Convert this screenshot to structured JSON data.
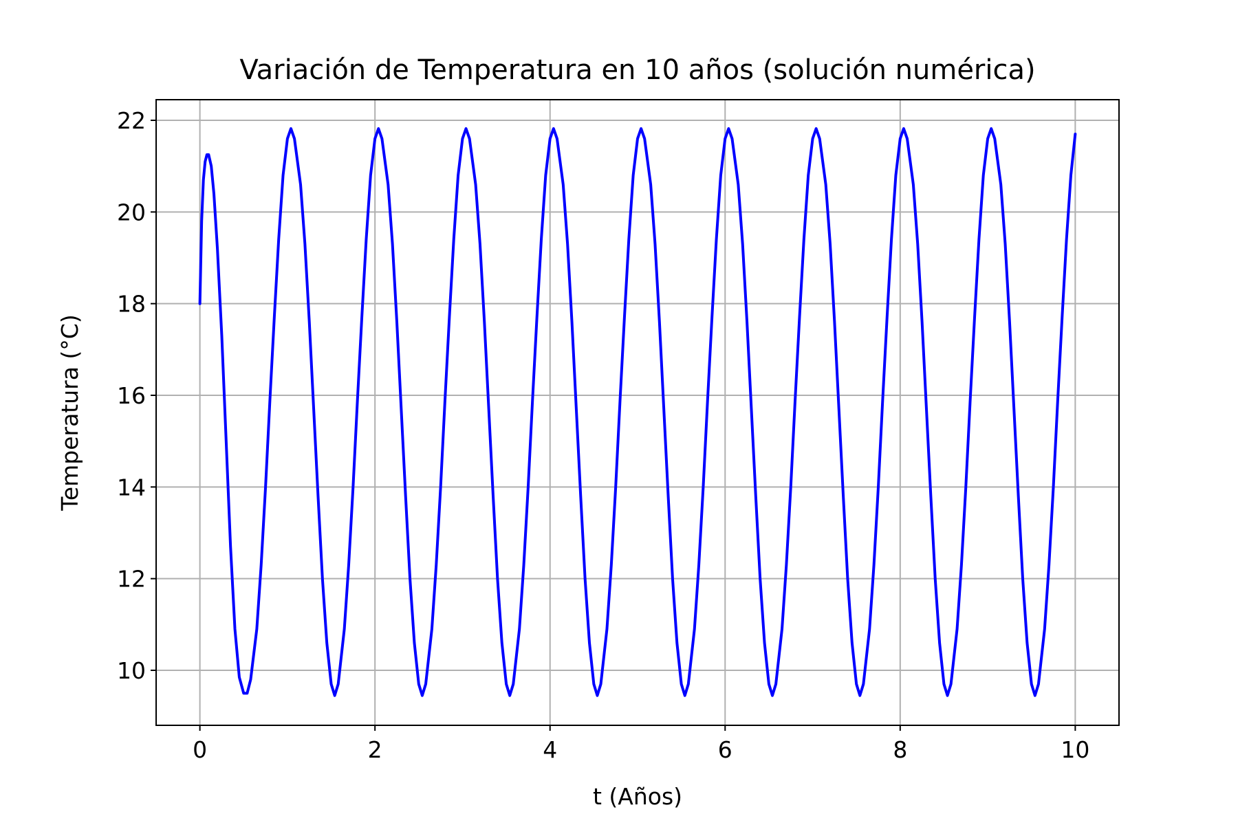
{
  "chart_data": {
    "type": "line",
    "title": "Variación de Temperatura en 10 años (solución numérica)",
    "xlabel": "t (Años)",
    "ylabel": "Temperatura (°C)",
    "xlim": [
      -0.5,
      10.5
    ],
    "ylim": [
      8.8,
      22.45
    ],
    "x_ticks": [
      0,
      2,
      4,
      6,
      8,
      10
    ],
    "y_ticks": [
      10,
      12,
      14,
      16,
      18,
      20,
      22
    ],
    "grid": true,
    "line_color": "#0000ff",
    "series": [
      {
        "points": [
          [
            0.0,
            18.0
          ],
          [
            0.02,
            19.8
          ],
          [
            0.04,
            20.7
          ],
          [
            0.06,
            21.1
          ],
          [
            0.08,
            21.25
          ],
          [
            0.1,
            21.25
          ],
          [
            0.13,
            21.0
          ],
          [
            0.16,
            20.4
          ],
          [
            0.2,
            19.2
          ],
          [
            0.25,
            17.3
          ],
          [
            0.3,
            15.0
          ],
          [
            0.35,
            12.7
          ],
          [
            0.4,
            10.9
          ],
          [
            0.45,
            9.85
          ],
          [
            0.5,
            9.5
          ],
          [
            0.54,
            9.5
          ],
          [
            0.58,
            9.8
          ],
          [
            0.65,
            10.9
          ],
          [
            0.7,
            12.3
          ],
          [
            0.75,
            14.0
          ],
          [
            0.8,
            15.9
          ],
          [
            0.85,
            17.7
          ],
          [
            0.9,
            19.4
          ],
          [
            0.95,
            20.8
          ],
          [
            1.0,
            21.6
          ],
          [
            1.04,
            21.82
          ],
          [
            1.08,
            21.6
          ],
          [
            1.15,
            20.6
          ],
          [
            1.2,
            19.3
          ],
          [
            1.25,
            17.6
          ],
          [
            1.3,
            15.7
          ],
          [
            1.35,
            13.8
          ],
          [
            1.4,
            12.0
          ],
          [
            1.45,
            10.6
          ],
          [
            1.5,
            9.7
          ],
          [
            1.54,
            9.45
          ],
          [
            1.58,
            9.7
          ],
          [
            1.65,
            10.9
          ],
          [
            1.7,
            12.3
          ],
          [
            1.75,
            14.0
          ],
          [
            1.8,
            15.9
          ],
          [
            1.85,
            17.7
          ],
          [
            1.9,
            19.4
          ],
          [
            1.95,
            20.8
          ],
          [
            2.0,
            21.6
          ],
          [
            2.04,
            21.82
          ],
          [
            2.08,
            21.6
          ],
          [
            2.15,
            20.6
          ],
          [
            2.2,
            19.3
          ],
          [
            2.25,
            17.6
          ],
          [
            2.3,
            15.7
          ],
          [
            2.35,
            13.8
          ],
          [
            2.4,
            12.0
          ],
          [
            2.45,
            10.6
          ],
          [
            2.5,
            9.7
          ],
          [
            2.54,
            9.45
          ],
          [
            2.58,
            9.7
          ],
          [
            2.65,
            10.9
          ],
          [
            2.7,
            12.3
          ],
          [
            2.75,
            14.0
          ],
          [
            2.8,
            15.9
          ],
          [
            2.85,
            17.7
          ],
          [
            2.9,
            19.4
          ],
          [
            2.95,
            20.8
          ],
          [
            3.0,
            21.6
          ],
          [
            3.04,
            21.82
          ],
          [
            3.08,
            21.6
          ],
          [
            3.15,
            20.6
          ],
          [
            3.2,
            19.3
          ],
          [
            3.25,
            17.6
          ],
          [
            3.3,
            15.7
          ],
          [
            3.35,
            13.8
          ],
          [
            3.4,
            12.0
          ],
          [
            3.45,
            10.6
          ],
          [
            3.5,
            9.7
          ],
          [
            3.54,
            9.45
          ],
          [
            3.58,
            9.7
          ],
          [
            3.65,
            10.9
          ],
          [
            3.7,
            12.3
          ],
          [
            3.75,
            14.0
          ],
          [
            3.8,
            15.9
          ],
          [
            3.85,
            17.7
          ],
          [
            3.9,
            19.4
          ],
          [
            3.95,
            20.8
          ],
          [
            4.0,
            21.6
          ],
          [
            4.04,
            21.82
          ],
          [
            4.08,
            21.6
          ],
          [
            4.15,
            20.6
          ],
          [
            4.2,
            19.3
          ],
          [
            4.25,
            17.6
          ],
          [
            4.3,
            15.7
          ],
          [
            4.35,
            13.8
          ],
          [
            4.4,
            12.0
          ],
          [
            4.45,
            10.6
          ],
          [
            4.5,
            9.7
          ],
          [
            4.54,
            9.45
          ],
          [
            4.58,
            9.7
          ],
          [
            4.65,
            10.9
          ],
          [
            4.7,
            12.3
          ],
          [
            4.75,
            14.0
          ],
          [
            4.8,
            15.9
          ],
          [
            4.85,
            17.7
          ],
          [
            4.9,
            19.4
          ],
          [
            4.95,
            20.8
          ],
          [
            5.0,
            21.6
          ],
          [
            5.04,
            21.82
          ],
          [
            5.08,
            21.6
          ],
          [
            5.15,
            20.6
          ],
          [
            5.2,
            19.3
          ],
          [
            5.25,
            17.6
          ],
          [
            5.3,
            15.7
          ],
          [
            5.35,
            13.8
          ],
          [
            5.4,
            12.0
          ],
          [
            5.45,
            10.6
          ],
          [
            5.5,
            9.7
          ],
          [
            5.54,
            9.45
          ],
          [
            5.58,
            9.7
          ],
          [
            5.65,
            10.9
          ],
          [
            5.7,
            12.3
          ],
          [
            5.75,
            14.0
          ],
          [
            5.8,
            15.9
          ],
          [
            5.85,
            17.7
          ],
          [
            5.9,
            19.4
          ],
          [
            5.95,
            20.8
          ],
          [
            6.0,
            21.6
          ],
          [
            6.04,
            21.82
          ],
          [
            6.08,
            21.6
          ],
          [
            6.15,
            20.6
          ],
          [
            6.2,
            19.3
          ],
          [
            6.25,
            17.6
          ],
          [
            6.3,
            15.7
          ],
          [
            6.35,
            13.8
          ],
          [
            6.4,
            12.0
          ],
          [
            6.45,
            10.6
          ],
          [
            6.5,
            9.7
          ],
          [
            6.54,
            9.45
          ],
          [
            6.58,
            9.7
          ],
          [
            6.65,
            10.9
          ],
          [
            6.7,
            12.3
          ],
          [
            6.75,
            14.0
          ],
          [
            6.8,
            15.9
          ],
          [
            6.85,
            17.7
          ],
          [
            6.9,
            19.4
          ],
          [
            6.95,
            20.8
          ],
          [
            7.0,
            21.6
          ],
          [
            7.04,
            21.82
          ],
          [
            7.08,
            21.6
          ],
          [
            7.15,
            20.6
          ],
          [
            7.2,
            19.3
          ],
          [
            7.25,
            17.6
          ],
          [
            7.3,
            15.7
          ],
          [
            7.35,
            13.8
          ],
          [
            7.4,
            12.0
          ],
          [
            7.45,
            10.6
          ],
          [
            7.5,
            9.7
          ],
          [
            7.54,
            9.45
          ],
          [
            7.58,
            9.7
          ],
          [
            7.65,
            10.9
          ],
          [
            7.7,
            12.3
          ],
          [
            7.75,
            14.0
          ],
          [
            7.8,
            15.9
          ],
          [
            7.85,
            17.7
          ],
          [
            7.9,
            19.4
          ],
          [
            7.95,
            20.8
          ],
          [
            8.0,
            21.6
          ],
          [
            8.04,
            21.82
          ],
          [
            8.08,
            21.6
          ],
          [
            8.15,
            20.6
          ],
          [
            8.2,
            19.3
          ],
          [
            8.25,
            17.6
          ],
          [
            8.3,
            15.7
          ],
          [
            8.35,
            13.8
          ],
          [
            8.4,
            12.0
          ],
          [
            8.45,
            10.6
          ],
          [
            8.5,
            9.7
          ],
          [
            8.54,
            9.45
          ],
          [
            8.58,
            9.7
          ],
          [
            8.65,
            10.9
          ],
          [
            8.7,
            12.3
          ],
          [
            8.75,
            14.0
          ],
          [
            8.8,
            15.9
          ],
          [
            8.85,
            17.7
          ],
          [
            8.9,
            19.4
          ],
          [
            8.95,
            20.8
          ],
          [
            9.0,
            21.6
          ],
          [
            9.04,
            21.82
          ],
          [
            9.08,
            21.6
          ],
          [
            9.15,
            20.6
          ],
          [
            9.2,
            19.3
          ],
          [
            9.25,
            17.6
          ],
          [
            9.3,
            15.7
          ],
          [
            9.35,
            13.8
          ],
          [
            9.4,
            12.0
          ],
          [
            9.45,
            10.6
          ],
          [
            9.5,
            9.7
          ],
          [
            9.54,
            9.45
          ],
          [
            9.58,
            9.7
          ],
          [
            9.65,
            10.9
          ],
          [
            9.7,
            12.3
          ],
          [
            9.75,
            14.0
          ],
          [
            9.8,
            15.9
          ],
          [
            9.85,
            17.7
          ],
          [
            9.9,
            19.4
          ],
          [
            9.95,
            20.8
          ],
          [
            10.0,
            21.7
          ]
        ]
      }
    ]
  }
}
